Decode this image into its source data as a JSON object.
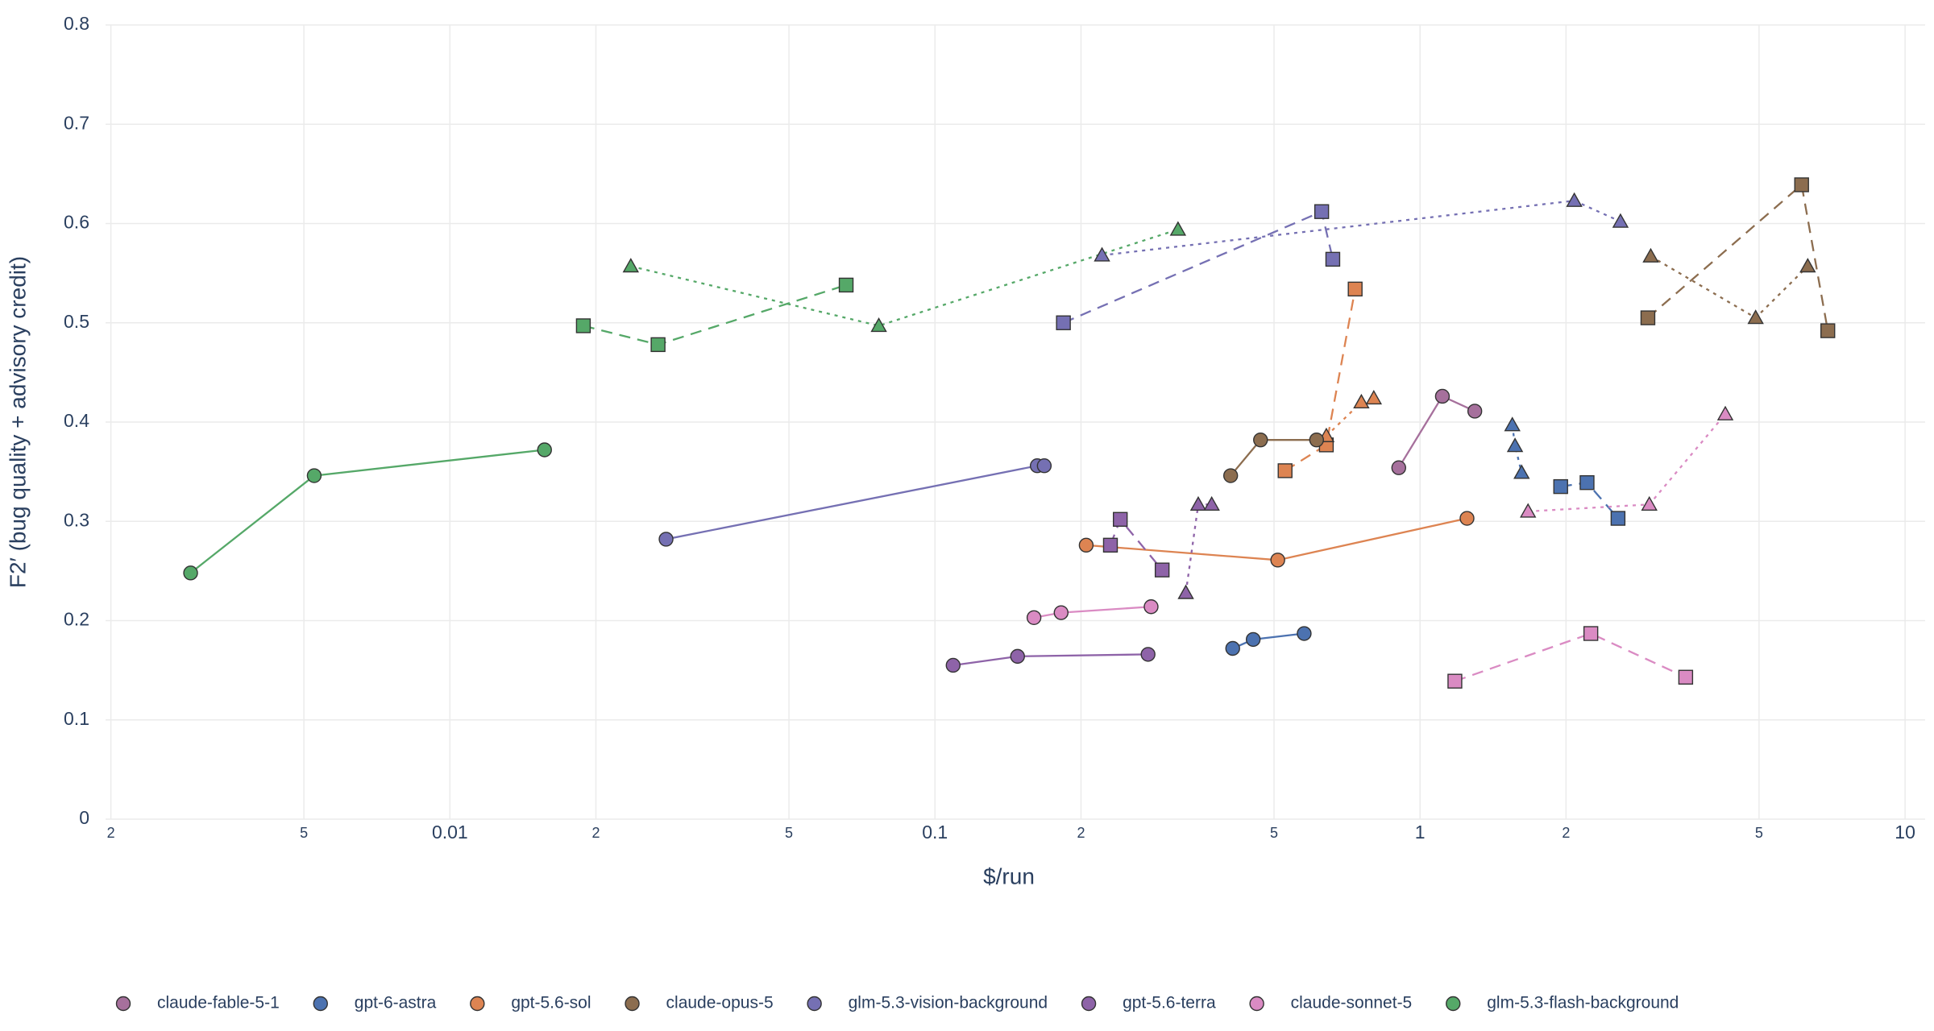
{
  "chart_data": {
    "type": "line",
    "x_label": "$/run",
    "y_label": "F2′ (bug quality + advisory credit)",
    "x_scale": "log",
    "xlim": [
      0.00195,
      11
    ],
    "ylim": [
      0,
      0.8
    ],
    "xticks": [
      {
        "value": 0.002,
        "label": "2"
      },
      {
        "value": 0.005,
        "label": "5"
      },
      0.01,
      {
        "value": 0.02,
        "label": "2"
      },
      {
        "value": 0.05,
        "label": "5"
      },
      0.1,
      {
        "value": 0.2,
        "label": "2"
      },
      {
        "value": 0.5,
        "label": "5"
      },
      1,
      {
        "value": 2,
        "label": "2"
      },
      {
        "value": 5,
        "label": "5"
      },
      10
    ],
    "yticks": [
      0,
      0.1,
      0.2,
      0.3,
      0.4,
      0.5,
      0.6,
      0.7,
      0.8
    ],
    "grid": true,
    "legend": "bottom",
    "series": [
      {
        "name": "claude-fable-5-1",
        "color": "#a6709c",
        "traces": [
          {
            "symbol": "circle",
            "dash": "solid",
            "x": [
              0.904,
              1.112,
              1.297
            ],
            "y": [
              0.354,
              0.426,
              0.411
            ]
          }
        ]
      },
      {
        "name": "gpt-6-astra",
        "color": "#4c72b0",
        "traces": [
          {
            "symbol": "circle",
            "dash": "solid",
            "x": [
              0.411,
              0.453,
              0.577
            ],
            "y": [
              0.172,
              0.181,
              0.187
            ]
          },
          {
            "symbol": "square",
            "dash": "dash",
            "x": [
              1.95,
              2.21,
              2.56
            ],
            "y": [
              0.335,
              0.339,
              0.303
            ]
          },
          {
            "symbol": "triangle",
            "dash": "dot",
            "x": [
              1.55,
              1.57,
              1.62
            ],
            "y": [
              0.397,
              0.376,
              0.349
            ]
          }
        ]
      },
      {
        "name": "gpt-5.6-sol",
        "color": "#dd8452",
        "traces": [
          {
            "symbol": "circle",
            "dash": "solid",
            "x": [
              0.205,
              0.509,
              1.25
            ],
            "y": [
              0.276,
              0.261,
              0.303
            ]
          },
          {
            "symbol": "square",
            "dash": "dash",
            "x": [
              0.527,
              0.641,
              0.735
            ],
            "y": [
              0.351,
              0.377,
              0.534
            ]
          },
          {
            "symbol": "triangle",
            "dash": "dot",
            "x": [
              0.641,
              0.757,
              0.803
            ],
            "y": [
              0.386,
              0.42,
              0.424
            ]
          }
        ]
      },
      {
        "name": "claude-opus-5",
        "color": "#8c6d4f",
        "traces": [
          {
            "symbol": "circle",
            "dash": "solid",
            "x": [
              0.407,
              0.469,
              0.612
            ],
            "y": [
              0.346,
              0.382,
              0.382
            ]
          },
          {
            "symbol": "square",
            "dash": "dash",
            "x": [
              2.95,
              6.12,
              6.93
            ],
            "y": [
              0.505,
              0.639,
              0.492
            ]
          },
          {
            "symbol": "triangle",
            "dash": "dot",
            "x": [
              2.99,
              4.92,
              6.3
            ],
            "y": [
              0.567,
              0.505,
              0.557
            ]
          }
        ]
      },
      {
        "name": "glm-5.3-vision-background",
        "color": "#7570b3",
        "traces": [
          {
            "symbol": "circle",
            "dash": "solid",
            "x": [
              0.0279,
              0.1625,
              0.168
            ],
            "y": [
              0.282,
              0.356,
              0.356
            ]
          },
          {
            "symbol": "square",
            "dash": "dash",
            "x": [
              0.184,
              0.627,
              0.661
            ],
            "y": [
              0.5,
              0.612,
              0.564
            ]
          },
          {
            "symbol": "triangle",
            "dash": "dot",
            "x": [
              0.221,
              2.08,
              2.59
            ],
            "y": [
              0.568,
              0.623,
              0.602
            ]
          }
        ]
      },
      {
        "name": "gpt-5.6-terra",
        "color": "#8e63a8",
        "traces": [
          {
            "symbol": "circle",
            "dash": "solid",
            "x": [
              0.109,
              0.148,
              0.275
            ],
            "y": [
              0.155,
              0.164,
              0.166
            ]
          },
          {
            "symbol": "square",
            "dash": "dash",
            "x": [
              0.23,
              0.241,
              0.294
            ],
            "y": [
              0.276,
              0.302,
              0.251
            ]
          },
          {
            "symbol": "triangle",
            "dash": "dot",
            "x": [
              0.329,
              0.349,
              0.372
            ],
            "y": [
              0.228,
              0.317,
              0.317
            ]
          }
        ]
      },
      {
        "name": "claude-sonnet-5",
        "color": "#da8bc3",
        "traces": [
          {
            "symbol": "circle",
            "dash": "solid",
            "x": [
              0.16,
              0.182,
              0.279
            ],
            "y": [
              0.203,
              0.208,
              0.214
            ]
          },
          {
            "symbol": "square",
            "dash": "dash",
            "x": [
              1.18,
              2.25,
              3.53
            ],
            "y": [
              0.139,
              0.187,
              0.143
            ]
          },
          {
            "symbol": "triangle",
            "dash": "dot",
            "x": [
              1.67,
              2.97,
              4.26
            ],
            "y": [
              0.31,
              0.317,
              0.408
            ]
          }
        ]
      },
      {
        "name": "glm-5.3-flash-background",
        "color": "#55a868",
        "traces": [
          {
            "symbol": "circle",
            "dash": "solid",
            "x": [
              0.00292,
              0.00525,
              0.01567
            ],
            "y": [
              0.248,
              0.346,
              0.372
            ]
          },
          {
            "symbol": "square",
            "dash": "dash",
            "x": [
              0.01884,
              0.02686,
              0.0656
            ],
            "y": [
              0.497,
              0.478,
              0.538
            ]
          },
          {
            "symbol": "triangle",
            "dash": "dot",
            "x": [
              0.0236,
              0.0766,
              0.317
            ],
            "y": [
              0.557,
              0.497,
              0.594
            ]
          }
        ]
      }
    ]
  }
}
